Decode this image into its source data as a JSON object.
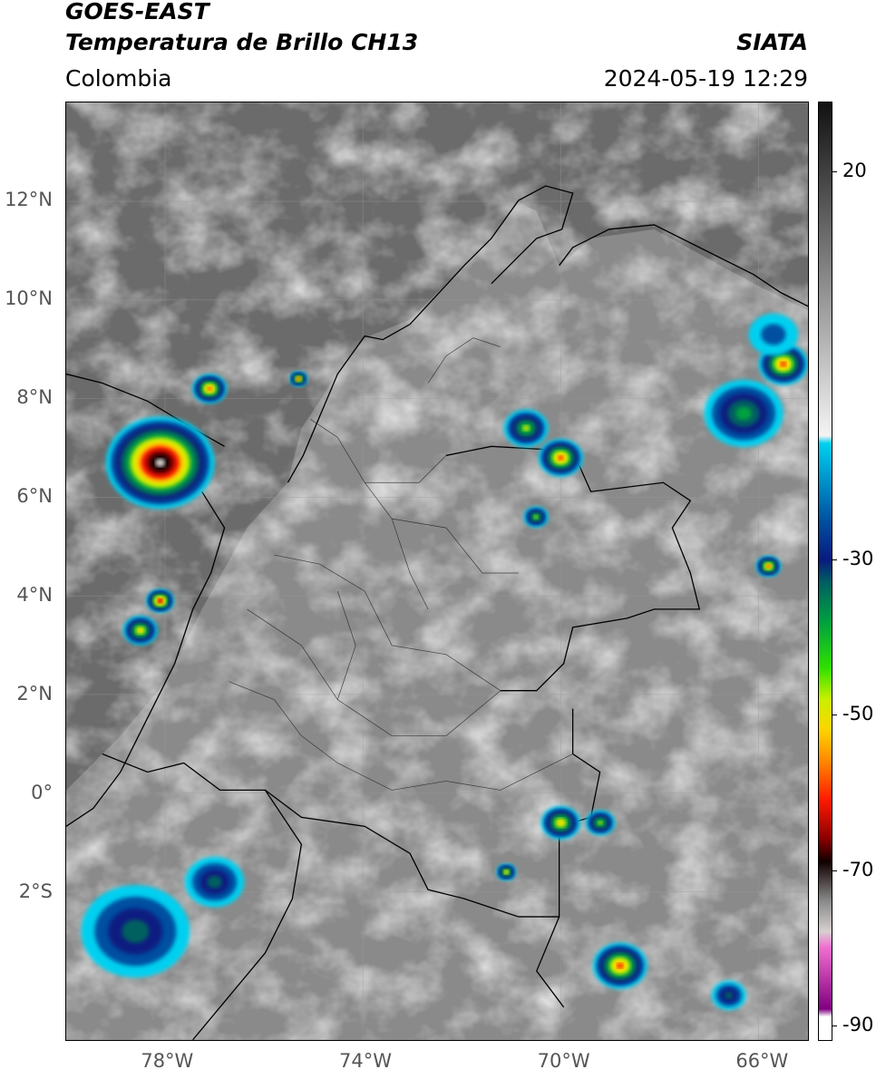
{
  "header": {
    "satellite": "GOES-EAST",
    "product": "Temperatura de Brillo CH13",
    "region": "Colombia",
    "organization": "SIATA",
    "datetime": "2024-05-19 12:29"
  },
  "map": {
    "lon_range": [
      -80,
      -65
    ],
    "lat_range": [
      -5,
      14
    ],
    "lat_ticks": [
      {
        "lat": 12,
        "label": "12°N"
      },
      {
        "lat": 10,
        "label": "10°N"
      },
      {
        "lat": 8,
        "label": "8°N"
      },
      {
        "lat": 6,
        "label": "6°N"
      },
      {
        "lat": 4,
        "label": "4°N"
      },
      {
        "lat": 2,
        "label": "2°N"
      },
      {
        "lat": 0,
        "label": "0°"
      },
      {
        "lat": -2,
        "label": "2°S"
      }
    ],
    "lon_ticks": [
      {
        "lon": -78,
        "label": "78°W"
      },
      {
        "lon": -74,
        "label": "74°W"
      },
      {
        "lon": -70,
        "label": "70°W"
      },
      {
        "lon": -66,
        "label": "66°W"
      }
    ],
    "storms": [
      {
        "name": "storm-pacific-panama",
        "lon": -78.1,
        "lat": 6.7,
        "size": 1.1,
        "peak": -85
      },
      {
        "name": "storm-uraba",
        "lon": -77.1,
        "lat": 8.2,
        "size": 0.35,
        "peak": -62
      },
      {
        "name": "storm-cordoba",
        "lon": -75.3,
        "lat": 8.4,
        "size": 0.18,
        "peak": -64
      },
      {
        "name": "storm-pacific-south-1",
        "lon": -78.5,
        "lat": 3.3,
        "size": 0.35,
        "peak": -58
      },
      {
        "name": "storm-pacific-south-2",
        "lon": -78.1,
        "lat": 3.9,
        "size": 0.28,
        "peak": -70
      },
      {
        "name": "storm-arauca",
        "lon": -70.0,
        "lat": 6.8,
        "size": 0.45,
        "peak": -64
      },
      {
        "name": "storm-apure",
        "lon": -70.7,
        "lat": 7.4,
        "size": 0.45,
        "peak": -52
      },
      {
        "name": "storm-venezuela-ne",
        "lon": -65.5,
        "lat": 8.7,
        "size": 0.5,
        "peak": -62
      },
      {
        "name": "storm-venezuela-east",
        "lon": -66.3,
        "lat": 7.7,
        "size": 0.8,
        "peak": -45
      },
      {
        "name": "storm-orinoco",
        "lon": -65.8,
        "lat": 4.6,
        "size": 0.25,
        "peak": -66
      },
      {
        "name": "storm-amazon-1",
        "lon": -68.8,
        "lat": -3.5,
        "size": 0.55,
        "peak": -66
      },
      {
        "name": "storm-amazon-2",
        "lon": -70.0,
        "lat": -0.6,
        "size": 0.4,
        "peak": -58
      },
      {
        "name": "storm-amazon-3",
        "lon": -69.2,
        "lat": -0.6,
        "size": 0.3,
        "peak": -52
      },
      {
        "name": "storm-ecuador-south",
        "lon": -78.6,
        "lat": -2.8,
        "size": 1.1,
        "peak": -42
      },
      {
        "name": "storm-ecuador-2",
        "lon": -77.0,
        "lat": -1.8,
        "size": 0.6,
        "peak": -40
      },
      {
        "name": "storm-amazon-4",
        "lon": -71.1,
        "lat": -1.6,
        "size": 0.2,
        "peak": -58
      },
      {
        "name": "storm-amazon-5",
        "lon": -66.6,
        "lat": -4.1,
        "size": 0.35,
        "peak": -42
      },
      {
        "name": "storm-caribbean-east",
        "lon": -65.7,
        "lat": 9.3,
        "size": 0.5,
        "peak": -30
      },
      {
        "name": "storm-meta",
        "lon": -70.5,
        "lat": 5.6,
        "size": 0.25,
        "peak": -55
      }
    ]
  },
  "colorbar": {
    "range": [
      -92,
      29
    ],
    "ticks": [
      {
        "value": 20,
        "label": "20"
      },
      {
        "value": -30,
        "label": "-30"
      },
      {
        "value": -50,
        "label": "-50"
      },
      {
        "value": -70,
        "label": "-70"
      },
      {
        "value": -90,
        "label": "-90"
      }
    ],
    "color_stops": [
      {
        "t": 29,
        "color": "#111111"
      },
      {
        "t": -14,
        "color": "#f4f4f4"
      },
      {
        "t": -15,
        "color": "#00d0f0"
      },
      {
        "t": -25,
        "color": "#0050a0"
      },
      {
        "t": -30,
        "color": "#0a1a80"
      },
      {
        "t": -33,
        "color": "#006060"
      },
      {
        "t": -38,
        "color": "#00a040"
      },
      {
        "t": -44,
        "color": "#30e000"
      },
      {
        "t": -48,
        "color": "#c8f000"
      },
      {
        "t": -52,
        "color": "#ffd400"
      },
      {
        "t": -56,
        "color": "#ff8800"
      },
      {
        "t": -61,
        "color": "#ff1a00"
      },
      {
        "t": -66,
        "color": "#8a0000"
      },
      {
        "t": -69,
        "color": "#100000"
      },
      {
        "t": -74,
        "color": "#888888"
      },
      {
        "t": -78,
        "color": "#d8d0d0"
      },
      {
        "t": -80,
        "color": "#f070d0"
      },
      {
        "t": -88,
        "color": "#800080"
      },
      {
        "t": -89,
        "color": "#ffffff"
      }
    ]
  }
}
